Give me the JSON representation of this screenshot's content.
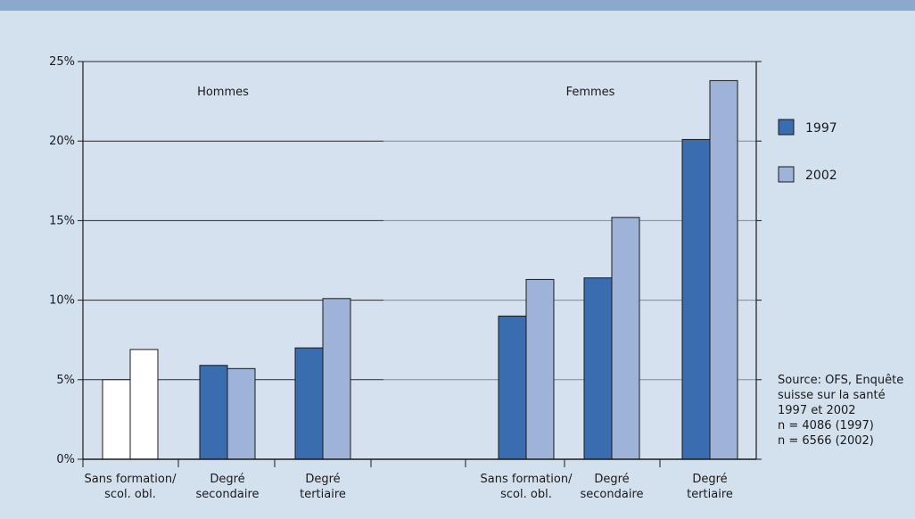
{
  "chart_data": {
    "type": "bar",
    "title": "",
    "xlabel": "",
    "ylabel": "",
    "ylim": [
      0,
      25
    ],
    "yticks": [
      0,
      5,
      10,
      15,
      20,
      25
    ],
    "ytick_labels": [
      "0%",
      "5%",
      "10%",
      "15%",
      "20%",
      "25%"
    ],
    "groups": [
      {
        "label": "Hommes",
        "categories": [
          {
            "lines": [
              "Sans formation/",
              "scol. obl."
            ],
            "values": [
              5.0,
              6.9
            ],
            "unfilled": true
          },
          {
            "lines": [
              "Degré",
              "secondaire"
            ],
            "values": [
              5.9,
              5.7
            ],
            "unfilled": false
          },
          {
            "lines": [
              "Degré",
              "tertiaire"
            ],
            "values": [
              7.0,
              10.1
            ],
            "unfilled": false
          }
        ]
      },
      {
        "label": "Femmes",
        "categories": [
          {
            "lines": [
              "Sans formation/",
              "scol. obl."
            ],
            "values": [
              9.0,
              11.3
            ],
            "unfilled": false
          },
          {
            "lines": [
              "Degré",
              "secondaire"
            ],
            "values": [
              11.4,
              15.2
            ],
            "unfilled": false
          },
          {
            "lines": [
              "Degré",
              "tertiaire"
            ],
            "values": [
              20.1,
              23.8
            ],
            "unfilled": false
          }
        ]
      }
    ],
    "series": [
      {
        "name": "1997",
        "color": "#3a6cb0"
      },
      {
        "name": "2002",
        "color": "#9db3d8"
      }
    ],
    "legend_position": "right",
    "grid": true,
    "source_lines": [
      "Source: OFS, Enquête",
      "suisse sur la santé",
      "1997 et 2002",
      "n = 4086 (1997)",
      "n = 6566 (2002)"
    ]
  }
}
